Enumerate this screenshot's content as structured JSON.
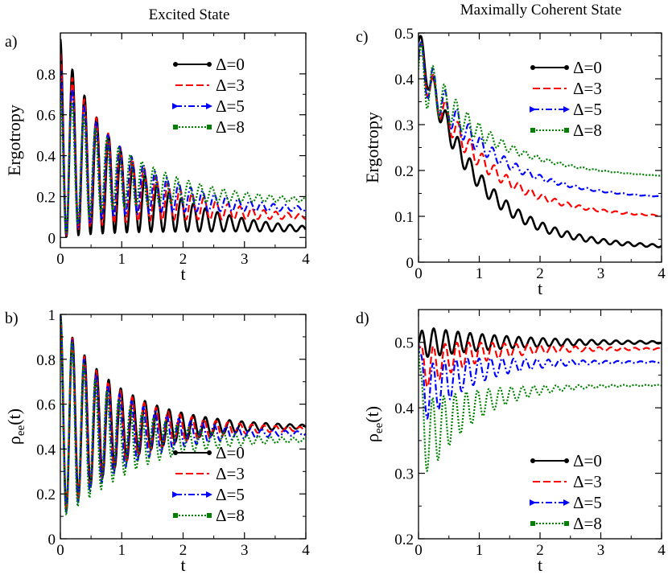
{
  "column_titles": [
    "Excited State",
    "Maximally Coherent State"
  ],
  "colors": {
    "d0": "#000000",
    "d3": "#ff0000",
    "d5": "#0000ff",
    "d8": "#008000"
  },
  "chart_data": [
    {
      "panel": "a)",
      "type": "line",
      "column_title": "Excited State",
      "xlabel": "t",
      "ylabel": "Ergotropy",
      "xlim": [
        0,
        4
      ],
      "ylim": [
        -0.05,
        1.0
      ],
      "xticks": [
        0,
        1,
        2,
        3,
        4
      ],
      "yticks": [
        0,
        0.2,
        0.4,
        0.6,
        0.8
      ],
      "legend": "top-right",
      "series": [
        {
          "name": "Δ=0",
          "color": "#000000",
          "style": "solid",
          "marker": "circle",
          "params": {
            "start": 1.0,
            "period": 0.197,
            "amp": 0.97,
            "decay": 1.1,
            "final": 0.03
          }
        },
        {
          "name": "Δ=3",
          "color": "#ff0000",
          "style": "dashed",
          "marker": "none",
          "params": {
            "start": 1.0,
            "period": 0.195,
            "amp": 0.9,
            "decay": 1.1,
            "final": 0.09
          }
        },
        {
          "name": "Δ=5",
          "color": "#0000ff",
          "style": "dashdot",
          "marker": "triangle",
          "params": {
            "start": 1.0,
            "period": 0.193,
            "amp": 0.82,
            "decay": 1.1,
            "final": 0.13
          }
        },
        {
          "name": "Δ=8",
          "color": "#008000",
          "style": "dotted",
          "marker": "square",
          "params": {
            "start": 1.0,
            "period": 0.19,
            "amp": 0.72,
            "decay": 1.1,
            "final": 0.175
          }
        }
      ]
    },
    {
      "panel": "c)",
      "type": "line",
      "column_title": "Maximally Coherent State",
      "xlabel": "t",
      "ylabel": "Ergotropy",
      "xlim": [
        0,
        4
      ],
      "ylim": [
        0,
        0.5
      ],
      "xticks": [
        0,
        1,
        2,
        3,
        4
      ],
      "yticks": [
        0,
        0.1,
        0.2,
        0.3,
        0.4,
        0.5
      ],
      "legend": "top-right",
      "series": [
        {
          "name": "Δ=0",
          "color": "#000000",
          "style": "solid",
          "marker": "circle",
          "params": {
            "start": 0.48,
            "final": 0.03,
            "decay": 0.9,
            "osc": 0.035,
            "odecay": 1.6,
            "period": 0.2
          }
        },
        {
          "name": "Δ=3",
          "color": "#ff0000",
          "style": "dashed",
          "marker": "none",
          "params": {
            "start": 0.45,
            "final": 0.095,
            "decay": 1.0,
            "osc": 0.045,
            "odecay": 1.1,
            "period": 0.2
          }
        },
        {
          "name": "Δ=5",
          "color": "#0000ff",
          "style": "dashdot",
          "marker": "triangle",
          "params": {
            "start": 0.44,
            "final": 0.135,
            "decay": 1.1,
            "osc": 0.055,
            "odecay": 0.9,
            "period": 0.195
          }
        },
        {
          "name": "Δ=8",
          "color": "#008000",
          "style": "dotted",
          "marker": "square",
          "params": {
            "start": 0.42,
            "final": 0.18,
            "decay": 1.2,
            "osc": 0.07,
            "odecay": 0.75,
            "period": 0.19
          }
        }
      ]
    },
    {
      "panel": "b)",
      "type": "line",
      "column_title": "",
      "xlabel": "t",
      "ylabel": "ρee(t)",
      "xlim": [
        0,
        4
      ],
      "ylim": [
        0,
        1.0
      ],
      "xticks": [
        0,
        1,
        2,
        3,
        4
      ],
      "yticks": [
        0,
        0.2,
        0.4,
        0.6,
        0.8,
        1
      ],
      "legend": "bottom-right",
      "series": [
        {
          "name": "Δ=0",
          "color": "#000000",
          "style": "solid",
          "marker": "circle",
          "params": {
            "start": 1.0,
            "final": 0.5,
            "amp": 0.45,
            "decay": 1.0,
            "period": 0.197
          }
        },
        {
          "name": "Δ=3",
          "color": "#ff0000",
          "style": "dashed",
          "marker": "none",
          "params": {
            "start": 1.0,
            "final": 0.49,
            "amp": 0.45,
            "decay": 1.0,
            "period": 0.195
          }
        },
        {
          "name": "Δ=5",
          "color": "#0000ff",
          "style": "dashdot",
          "marker": "triangle",
          "params": {
            "start": 1.0,
            "final": 0.47,
            "amp": 0.45,
            "decay": 1.0,
            "period": 0.193
          }
        },
        {
          "name": "Δ=8",
          "color": "#008000",
          "style": "dotted",
          "marker": "square",
          "params": {
            "start": 1.0,
            "final": 0.44,
            "amp": 0.45,
            "decay": 1.0,
            "period": 0.19
          }
        }
      ]
    },
    {
      "panel": "d)",
      "type": "line",
      "column_title": "",
      "xlabel": "t",
      "ylabel": "ρee(t)",
      "xlim": [
        0,
        4
      ],
      "ylim": [
        0.2,
        0.55
      ],
      "xticks": [
        0,
        1,
        2,
        3,
        4
      ],
      "yticks": [
        0.2,
        0.3,
        0.4,
        0.5
      ],
      "legend": "bottom-right",
      "series": [
        {
          "name": "Δ=0",
          "color": "#000000",
          "style": "solid",
          "marker": "circle",
          "params": {
            "start": 0.5,
            "final": 0.5,
            "amp": 0.025,
            "decay": 1.5,
            "period": 0.2,
            "dip": 0.0,
            "diptau": 0.3
          }
        },
        {
          "name": "Δ=3",
          "color": "#ff0000",
          "style": "dashed",
          "marker": "none",
          "params": {
            "start": 0.5,
            "final": 0.49,
            "amp": 0.035,
            "decay": 1.2,
            "period": 0.195,
            "dip": 0.05,
            "diptau": 0.5
          }
        },
        {
          "name": "Δ=5",
          "color": "#0000ff",
          "style": "dashdot",
          "marker": "triangle",
          "params": {
            "start": 0.5,
            "final": 0.47,
            "amp": 0.05,
            "decay": 1.0,
            "period": 0.19,
            "dip": 0.09,
            "diptau": 0.6
          }
        },
        {
          "name": "Δ=8",
          "color": "#008000",
          "style": "dotted",
          "marker": "square",
          "params": {
            "start": 0.5,
            "final": 0.435,
            "amp": 0.07,
            "decay": 0.85,
            "period": 0.185,
            "dip": 0.16,
            "diptau": 0.7
          }
        }
      ]
    }
  ]
}
